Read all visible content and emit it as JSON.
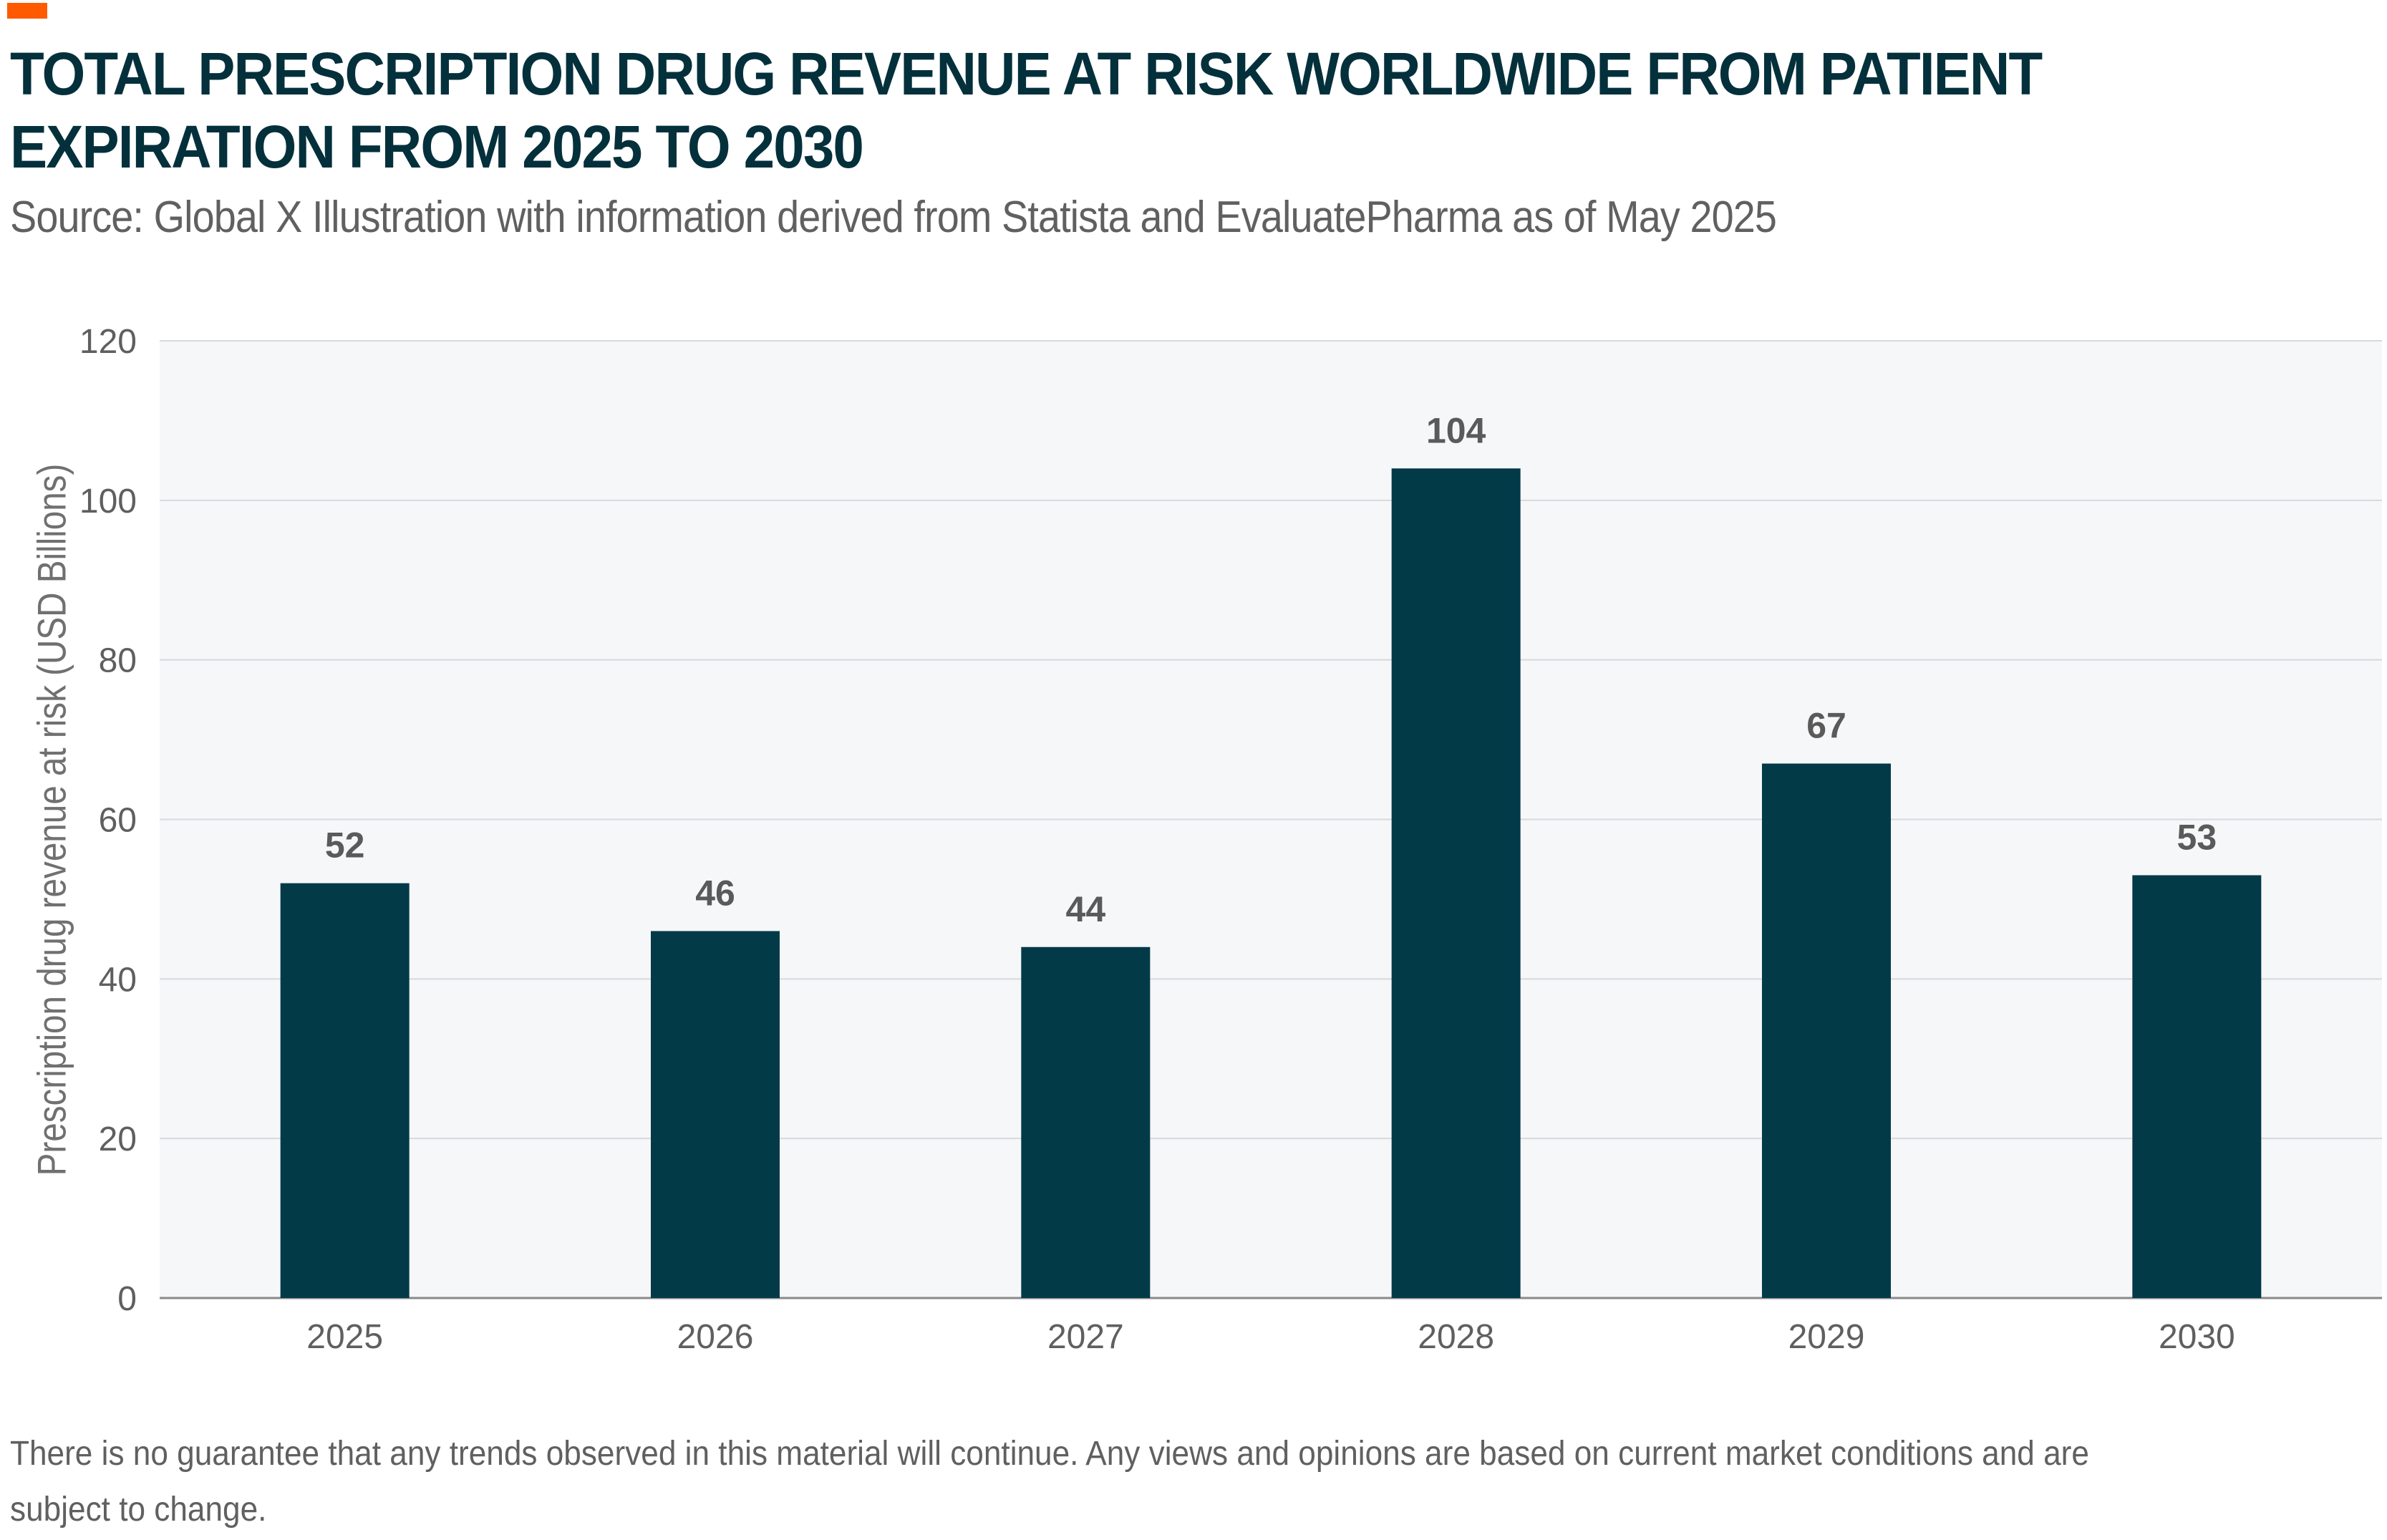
{
  "title": "TOTAL PRESCRIPTION DRUG REVENUE AT RISK WORLDWIDE FROM PATIENT EXPIRATION FROM 2025 TO 2030",
  "subtitle": "Source: Global X Illustration with information derived from Statista and EvaluatePharma as of May 2025",
  "footer": "There is no guarantee that any trends observed in this material will continue. Any views and opinions are based on current market conditions and are subject to change.",
  "colors": {
    "accent": "#ff5a00",
    "bar": "#023a48",
    "title": "#04303c",
    "plot_bg": "#f6f7f9"
  },
  "chart_data": {
    "type": "bar",
    "title": "TOTAL PRESCRIPTION DRUG REVENUE AT RISK WORLDWIDE FROM PATIENT EXPIRATION FROM 2025 TO 2030",
    "xlabel": "",
    "ylabel": "Prescription drug revenue at risk (USD Billions)",
    "categories": [
      "2025",
      "2026",
      "2027",
      "2028",
      "2029",
      "2030"
    ],
    "values": [
      52,
      46,
      44,
      104,
      67,
      53
    ],
    "ylim": [
      0,
      120
    ],
    "yticks": [
      0,
      20,
      40,
      60,
      80,
      100,
      120
    ],
    "grid": true,
    "data_labels": true
  }
}
